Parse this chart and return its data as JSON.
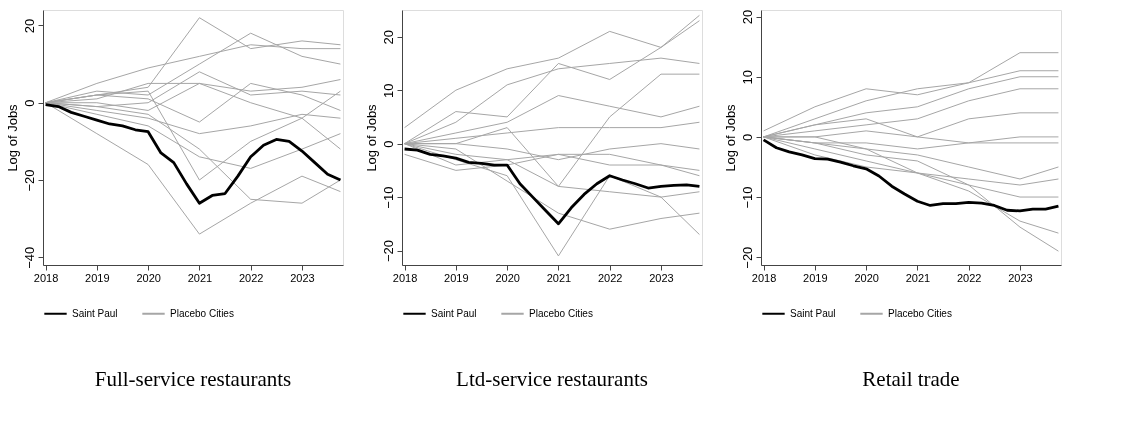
{
  "chart_data": [
    {
      "type": "line",
      "title": "Full-service restaurants",
      "ylabel": "Log of Jobs",
      "xlim": [
        2017.95,
        2023.8
      ],
      "xticks": [
        2018,
        2019,
        2020,
        2021,
        2022,
        2023
      ],
      "ylim": [
        -42,
        24
      ],
      "yticks": [
        -40,
        -20,
        0,
        20
      ],
      "grid": false,
      "legend": "bottom",
      "x": [
        2018,
        2018.25,
        2018.5,
        2018.75,
        2019,
        2019.25,
        2019.5,
        2019.75,
        2020,
        2020.25,
        2020.5,
        2020.75,
        2021,
        2021.25,
        2021.5,
        2021.75,
        2022,
        2022.25,
        2022.5,
        2022.75,
        2023,
        2023.25,
        2023.5,
        2023.75
      ],
      "series": [
        {
          "name": "Saint Paul",
          "color": "#000000",
          "values": [
            -0.5,
            -1,
            -2.5,
            -3.5,
            -4.5,
            -5.5,
            -6,
            -7,
            -7.5,
            -13,
            -15.5,
            -21,
            -26,
            -24,
            -23.5,
            -19,
            -14,
            -11,
            -9.5,
            -10,
            -12.5,
            -15.5,
            -18.5,
            -20
          ]
        },
        {
          "name": "Placebo Cities",
          "color": "#a6a6a6",
          "x": [
            2018,
            2019,
            2020,
            2021,
            2022,
            2023,
            2023.75
          ],
          "values": [
            0,
            5,
            9,
            12,
            15,
            14,
            14
          ]
        },
        {
          "color": "#a6a6a6",
          "x": [
            2018,
            2019,
            2020,
            2021,
            2022,
            2023,
            2023.75
          ],
          "values": [
            0,
            2,
            4,
            22,
            14,
            16,
            15
          ]
        },
        {
          "color": "#a6a6a6",
          "x": [
            2018,
            2019,
            2020,
            2021,
            2022,
            2023,
            2023.75
          ],
          "values": [
            0,
            3,
            2,
            10,
            18,
            12,
            10
          ]
        },
        {
          "color": "#a6a6a6",
          "x": [
            2018,
            2019,
            2020,
            2021,
            2022,
            2023,
            2023.75
          ],
          "values": [
            0,
            1,
            5,
            5,
            3,
            4,
            6
          ]
        },
        {
          "color": "#a6a6a6",
          "x": [
            2018,
            2019,
            2020,
            2021,
            2022,
            2023,
            2023.75
          ],
          "values": [
            0,
            -1,
            0,
            8,
            2,
            3,
            2
          ]
        },
        {
          "color": "#a6a6a6",
          "x": [
            2018,
            2019,
            2020,
            2021,
            2022,
            2023,
            2023.75
          ],
          "values": [
            0,
            2,
            1,
            -5,
            5,
            2,
            -2
          ]
        },
        {
          "color": "#a6a6a6",
          "x": [
            2018,
            2019,
            2020,
            2021,
            2022,
            2023,
            2023.75
          ],
          "values": [
            0,
            -2,
            -4,
            -8,
            -6,
            -3,
            -4
          ]
        },
        {
          "color": "#a6a6a6",
          "x": [
            2018,
            2019,
            2020,
            2021,
            2022,
            2023,
            2023.75
          ],
          "values": [
            0,
            -3,
            -6,
            -14,
            -17,
            -12,
            -8
          ]
        },
        {
          "color": "#a6a6a6",
          "x": [
            2018,
            2019,
            2020,
            2021,
            2022,
            2023,
            2023.75
          ],
          "values": [
            0,
            -8,
            -16,
            -34,
            -26,
            -19,
            -23
          ]
        },
        {
          "color": "#a6a6a6",
          "x": [
            2018,
            2019,
            2020,
            2021,
            2022,
            2023,
            2023.75
          ],
          "values": [
            0,
            -1,
            -3,
            -12,
            -25,
            -26,
            -20
          ]
        },
        {
          "color": "#a6a6a6",
          "x": [
            2018,
            2019,
            2020,
            2021,
            2022,
            2023,
            2023.75
          ],
          "values": [
            0,
            2,
            3,
            -20,
            -10,
            -4,
            -12
          ]
        },
        {
          "color": "#a6a6a6",
          "x": [
            2018,
            2019,
            2020,
            2021,
            2022,
            2023,
            2023.75
          ],
          "values": [
            0,
            0,
            -2,
            5,
            0,
            -4,
            3
          ]
        }
      ]
    },
    {
      "type": "line",
      "title": "Ltd-service restaurants",
      "ylabel": "Log of Jobs",
      "xlim": [
        2017.95,
        2023.8
      ],
      "xticks": [
        2018,
        2019,
        2020,
        2021,
        2022,
        2023
      ],
      "ylim": [
        -22.7,
        25
      ],
      "yticks": [
        -20,
        -10,
        0,
        10,
        20
      ],
      "grid": false,
      "legend": "bottom",
      "x": [
        2018,
        2018.25,
        2018.5,
        2018.75,
        2019,
        2019.25,
        2019.5,
        2019.75,
        2020,
        2020.25,
        2020.5,
        2020.75,
        2021,
        2021.25,
        2021.5,
        2021.75,
        2022,
        2022.25,
        2022.5,
        2022.75,
        2023,
        2023.25,
        2023.5,
        2023.75
      ],
      "series": [
        {
          "name": "Saint Paul",
          "color": "#000000",
          "values": [
            -1,
            -1.2,
            -2,
            -2.3,
            -2.7,
            -3.5,
            -3.7,
            -4,
            -4,
            -7.5,
            -10,
            -12.5,
            -15,
            -12,
            -9.5,
            -7.5,
            -6,
            -6.8,
            -7.5,
            -8.3,
            -8,
            -7.8,
            -7.7,
            -8
          ]
        },
        {
          "name": "Placebo Cities",
          "color": "#a6a6a6",
          "x": [
            2018,
            2019,
            2020,
            2021,
            2022,
            2023,
            2023.75
          ],
          "values": [
            3,
            10,
            14,
            16,
            21,
            18,
            24
          ]
        },
        {
          "color": "#a6a6a6",
          "x": [
            2018,
            2019,
            2020,
            2021,
            2022,
            2023,
            2023.75
          ],
          "values": [
            0,
            4,
            11,
            14,
            15,
            16,
            15
          ]
        },
        {
          "color": "#a6a6a6",
          "x": [
            2018,
            2019,
            2020,
            2021,
            2022,
            2023,
            2023.75
          ],
          "values": [
            0,
            6,
            5,
            15,
            12,
            18,
            23
          ]
        },
        {
          "color": "#a6a6a6",
          "x": [
            2018,
            2019,
            2020,
            2021,
            2022,
            2023,
            2023.75
          ],
          "values": [
            0,
            0,
            3,
            -8,
            5,
            13,
            13
          ]
        },
        {
          "color": "#a6a6a6",
          "x": [
            2018,
            2019,
            2020,
            2021,
            2022,
            2023,
            2023.75
          ],
          "values": [
            0,
            2,
            4,
            9,
            7,
            5,
            7
          ]
        },
        {
          "color": "#a6a6a6",
          "x": [
            2018,
            2019,
            2020,
            2021,
            2022,
            2023,
            2023.75
          ],
          "values": [
            0,
            1,
            2,
            3,
            3,
            3,
            4
          ]
        },
        {
          "color": "#a6a6a6",
          "x": [
            2018,
            2019,
            2020,
            2021,
            2022,
            2023,
            2023.75
          ],
          "values": [
            0,
            0,
            -1,
            -3,
            -1,
            0,
            -1
          ]
        },
        {
          "color": "#a6a6a6",
          "x": [
            2018,
            2019,
            2020,
            2021,
            2022,
            2023,
            2023.75
          ],
          "values": [
            0,
            -2,
            -3,
            -2,
            -4,
            -4,
            -5
          ]
        },
        {
          "color": "#a6a6a6",
          "x": [
            2018,
            2019,
            2020,
            2021,
            2022,
            2023,
            2023.75
          ],
          "values": [
            0,
            -3,
            -6,
            -21,
            -6,
            -10,
            -17
          ]
        },
        {
          "color": "#a6a6a6",
          "x": [
            2018,
            2019,
            2020,
            2021,
            2022,
            2023,
            2023.75
          ],
          "values": [
            0,
            -1,
            -7,
            -13,
            -16,
            -14,
            -13
          ]
        },
        {
          "color": "#a6a6a6",
          "x": [
            2018,
            2019,
            2020,
            2021,
            2022,
            2023,
            2023.75
          ],
          "values": [
            0,
            -4,
            -3,
            -8,
            -9,
            -10,
            -9
          ]
        },
        {
          "color": "#a6a6a6",
          "x": [
            2018,
            2019,
            2020,
            2021,
            2022,
            2023,
            2023.75
          ],
          "values": [
            -2,
            -5,
            -4,
            -2,
            -2,
            -4,
            -6
          ]
        }
      ]
    },
    {
      "type": "line",
      "title": "Retail trade",
      "ylabel": "Log of Jobs",
      "xlim": [
        2017.95,
        2023.8
      ],
      "xticks": [
        2018,
        2019,
        2020,
        2021,
        2022,
        2023
      ],
      "ylim": [
        -21.3,
        21.1
      ],
      "yticks": [
        -20,
        -10,
        0,
        10,
        20
      ],
      "grid": false,
      "legend": "bottom",
      "x": [
        2018,
        2018.25,
        2018.5,
        2018.75,
        2019,
        2019.25,
        2019.5,
        2019.75,
        2020,
        2020.25,
        2020.5,
        2020.75,
        2021,
        2021.25,
        2021.5,
        2021.75,
        2022,
        2022.25,
        2022.5,
        2022.75,
        2023,
        2023.25,
        2023.5,
        2023.75
      ],
      "series": [
        {
          "name": "Saint Paul",
          "color": "#000000",
          "values": [
            -0.5,
            -1.8,
            -2.5,
            -3,
            -3.6,
            -3.7,
            -4.2,
            -4.8,
            -5.3,
            -6.5,
            -8.2,
            -9.5,
            -10.7,
            -11.4,
            -11.1,
            -11.1,
            -10.9,
            -11,
            -11.4,
            -12.2,
            -12.3,
            -12,
            -12,
            -11.5
          ]
        },
        {
          "name": "Placebo Cities",
          "color": "#a6a6a6",
          "x": [
            2018,
            2019,
            2020,
            2021,
            2022,
            2023,
            2023.75
          ],
          "values": [
            1,
            5,
            8,
            7,
            9,
            14,
            14
          ]
        },
        {
          "color": "#a6a6a6",
          "x": [
            2018,
            2019,
            2020,
            2021,
            2022,
            2023,
            2023.75
          ],
          "values": [
            0,
            3,
            6,
            8,
            9,
            11,
            11
          ]
        },
        {
          "color": "#a6a6a6",
          "x": [
            2018,
            2019,
            2020,
            2021,
            2022,
            2023,
            2023.75
          ],
          "values": [
            0,
            2,
            4,
            5,
            8,
            10,
            10
          ]
        },
        {
          "color": "#a6a6a6",
          "x": [
            2018,
            2019,
            2020,
            2021,
            2022,
            2023,
            2023.75
          ],
          "values": [
            0,
            1,
            2,
            3,
            6,
            8,
            8
          ]
        },
        {
          "color": "#a6a6a6",
          "x": [
            2018,
            2019,
            2020,
            2021,
            2022,
            2023,
            2023.75
          ],
          "values": [
            0,
            0,
            1,
            0,
            3,
            4,
            4
          ]
        },
        {
          "color": "#a6a6a6",
          "x": [
            2018,
            2019,
            2020,
            2021,
            2022,
            2023,
            2023.75
          ],
          "values": [
            0,
            2,
            3,
            0,
            -1,
            0,
            0
          ]
        },
        {
          "color": "#a6a6a6",
          "x": [
            2018,
            2019,
            2020,
            2021,
            2022,
            2023,
            2023.75
          ],
          "values": [
            0,
            -1,
            -1,
            -2,
            -1,
            -1,
            -1
          ]
        },
        {
          "color": "#a6a6a6",
          "x": [
            2018,
            2019,
            2020,
            2021,
            2022,
            2023,
            2023.75
          ],
          "values": [
            0,
            -1,
            -2,
            -3,
            -5,
            -7,
            -5
          ]
        },
        {
          "color": "#a6a6a6",
          "x": [
            2018,
            2019,
            2020,
            2021,
            2022,
            2023,
            2023.75
          ],
          "values": [
            0,
            -2,
            -4,
            -6,
            -8,
            -10,
            -10
          ]
        },
        {
          "color": "#a6a6a6",
          "x": [
            2018,
            2019,
            2020,
            2021,
            2022,
            2023,
            2023.75
          ],
          "values": [
            0,
            -1,
            -3,
            -4,
            -8,
            -15,
            -19
          ]
        },
        {
          "color": "#a6a6a6",
          "x": [
            2018,
            2019,
            2020,
            2021,
            2022,
            2023,
            2023.75
          ],
          "values": [
            0,
            -3,
            -5,
            -6,
            -9,
            -14,
            -16
          ]
        },
        {
          "color": "#a6a6a6",
          "x": [
            2018,
            2019,
            2020,
            2021,
            2022,
            2023,
            2023.75
          ],
          "values": [
            0,
            0,
            -2,
            -6,
            -7,
            -8,
            -7
          ]
        }
      ]
    }
  ]
}
